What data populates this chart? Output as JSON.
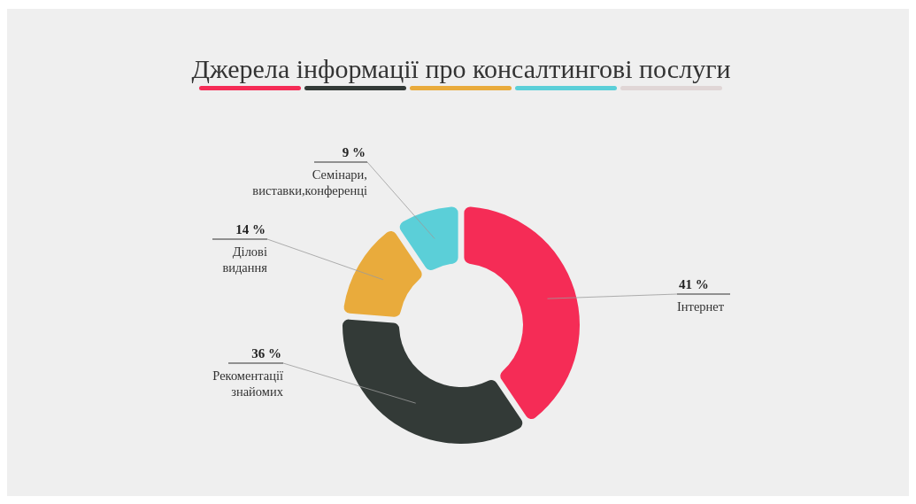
{
  "chart_data": {
    "type": "donut",
    "title": "Джерела інформації про консалтингові послуги",
    "categories": [
      "Інтернет",
      "Рекоментації знайомих",
      "Ділові видання",
      "Семінари, виставки,конференці"
    ],
    "values": [
      41,
      36,
      14,
      9
    ],
    "colors": [
      "#f52c56",
      "#333a37",
      "#e9ab3c",
      "#5bcfd8"
    ],
    "value_labels": [
      "41 %",
      "36 %",
      "14 %",
      "9 %"
    ]
  }
}
